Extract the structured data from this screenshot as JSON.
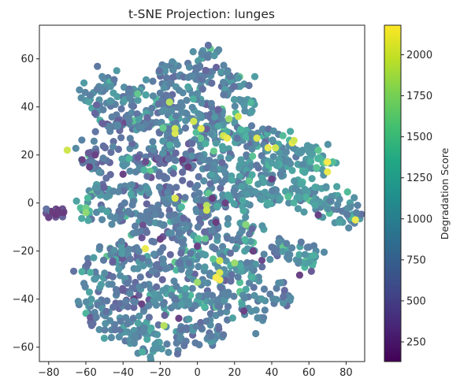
{
  "chart_data": {
    "type": "scatter",
    "title": "t-SNE Projection: lunges",
    "xlabel": "",
    "ylabel": "",
    "xlim": [
      -85,
      90
    ],
    "ylim": [
      -66,
      74
    ],
    "x_ticks": [
      -80,
      -60,
      -40,
      -20,
      0,
      20,
      40,
      60,
      80
    ],
    "y_ticks": [
      -60,
      -40,
      -20,
      0,
      20,
      40,
      60
    ],
    "grid": false,
    "colormap": "viridis",
    "colorbar": {
      "label": "Degradation Score",
      "range": [
        130,
        2180
      ],
      "ticks": [
        250,
        500,
        750,
        1000,
        1250,
        1500,
        1750,
        2000
      ]
    },
    "clusters": [
      {
        "cx": 5,
        "cy": 62,
        "sx": 3,
        "sy": 3,
        "n": 18,
        "c": 820
      },
      {
        "cx": -15,
        "cy": 52,
        "sx": 4,
        "sy": 3,
        "n": 25,
        "c": 780
      },
      {
        "cx": 2,
        "cy": 52,
        "sx": 5,
        "sy": 4,
        "n": 35,
        "c": 800
      },
      {
        "cx": 18,
        "cy": 50,
        "sx": 5,
        "sy": 4,
        "n": 30,
        "c": 850
      },
      {
        "cx": -50,
        "cy": 46,
        "sx": 7,
        "sy": 3,
        "n": 40,
        "c": 900
      },
      {
        "cx": -35,
        "cy": 45,
        "sx": 5,
        "sy": 3,
        "n": 30,
        "c": 850
      },
      {
        "cx": -18,
        "cy": 42,
        "sx": 4,
        "sy": 3,
        "n": 25,
        "c": 750
      },
      {
        "cx": -5,
        "cy": 38,
        "sx": 4,
        "sy": 3,
        "n": 25,
        "c": 850
      },
      {
        "cx": 10,
        "cy": 37,
        "sx": 4,
        "sy": 3,
        "n": 25,
        "c": 700
      },
      {
        "cx": 25,
        "cy": 40,
        "sx": 3,
        "sy": 3,
        "n": 15,
        "c": 1000
      },
      {
        "cx": -45,
        "cy": 33,
        "sx": 5,
        "sy": 3,
        "n": 30,
        "c": 700
      },
      {
        "cx": -30,
        "cy": 33,
        "sx": 5,
        "sy": 3,
        "n": 30,
        "c": 800
      },
      {
        "cx": -15,
        "cy": 30,
        "sx": 4,
        "sy": 4,
        "n": 30,
        "c": 850
      },
      {
        "cx": 5,
        "cy": 28,
        "sx": 5,
        "sy": 4,
        "n": 40,
        "c": 900
      },
      {
        "cx": 20,
        "cy": 28,
        "sx": 5,
        "sy": 4,
        "n": 35,
        "c": 950
      },
      {
        "cx": 35,
        "cy": 27,
        "sx": 4,
        "sy": 3,
        "n": 25,
        "c": 800
      },
      {
        "cx": -55,
        "cy": 20,
        "sx": 4,
        "sy": 4,
        "n": 30,
        "c": 650
      },
      {
        "cx": -35,
        "cy": 18,
        "sx": 5,
        "sy": 4,
        "n": 35,
        "c": 800
      },
      {
        "cx": -20,
        "cy": 18,
        "sx": 5,
        "sy": 4,
        "n": 35,
        "c": 700
      },
      {
        "cx": -5,
        "cy": 18,
        "sx": 4,
        "sy": 4,
        "n": 30,
        "c": 650
      },
      {
        "cx": 10,
        "cy": 15,
        "sx": 5,
        "sy": 4,
        "n": 35,
        "c": 850
      },
      {
        "cx": 28,
        "cy": 14,
        "sx": 5,
        "sy": 4,
        "n": 35,
        "c": 900
      },
      {
        "cx": 45,
        "cy": 18,
        "sx": 5,
        "sy": 4,
        "n": 40,
        "c": 950
      },
      {
        "cx": 58,
        "cy": 20,
        "sx": 4,
        "sy": 4,
        "n": 30,
        "c": 1000
      },
      {
        "cx": 70,
        "cy": 16,
        "sx": 3,
        "sy": 3,
        "n": 12,
        "c": 1300
      },
      {
        "cx": -52,
        "cy": 5,
        "sx": 4,
        "sy": 4,
        "n": 30,
        "c": 800
      },
      {
        "cx": -35,
        "cy": 5,
        "sx": 5,
        "sy": 3,
        "n": 30,
        "c": 850
      },
      {
        "cx": -15,
        "cy": 2,
        "sx": 5,
        "sy": 4,
        "n": 35,
        "c": 700
      },
      {
        "cx": 5,
        "cy": 0,
        "sx": 5,
        "sy": 4,
        "n": 35,
        "c": 750
      },
      {
        "cx": 22,
        "cy": 3,
        "sx": 5,
        "sy": 4,
        "n": 35,
        "c": 900
      },
      {
        "cx": 40,
        "cy": 5,
        "sx": 5,
        "sy": 4,
        "n": 40,
        "c": 950
      },
      {
        "cx": 57,
        "cy": 3,
        "sx": 5,
        "sy": 4,
        "n": 40,
        "c": 1000
      },
      {
        "cx": 72,
        "cy": 0,
        "sx": 5,
        "sy": 4,
        "n": 35,
        "c": 1000
      },
      {
        "cx": 82,
        "cy": -5,
        "sx": 3,
        "sy": 3,
        "n": 20,
        "c": 900
      },
      {
        "cx": -76,
        "cy": -4,
        "sx": 3,
        "sy": 1,
        "n": 25,
        "c": 350
      },
      {
        "cx": -58,
        "cy": -3,
        "sx": 3,
        "sy": 2,
        "n": 15,
        "c": 1050
      },
      {
        "cx": -40,
        "cy": -5,
        "sx": 5,
        "sy": 3,
        "n": 30,
        "c": 800
      },
      {
        "cx": -25,
        "cy": -8,
        "sx": 5,
        "sy": 4,
        "n": 35,
        "c": 700
      },
      {
        "cx": -10,
        "cy": -10,
        "sx": 5,
        "sy": 4,
        "n": 35,
        "c": 750
      },
      {
        "cx": 10,
        "cy": -12,
        "sx": 5,
        "sy": 4,
        "n": 35,
        "c": 800
      },
      {
        "cx": 28,
        "cy": -12,
        "sx": 4,
        "sy": 4,
        "n": 30,
        "c": 900
      },
      {
        "cx": 45,
        "cy": -20,
        "sx": 5,
        "sy": 3,
        "n": 30,
        "c": 850
      },
      {
        "cx": 60,
        "cy": -22,
        "sx": 4,
        "sy": 3,
        "n": 25,
        "c": 900
      },
      {
        "cx": -40,
        "cy": -22,
        "sx": 5,
        "sy": 4,
        "n": 35,
        "c": 800
      },
      {
        "cx": -22,
        "cy": -25,
        "sx": 5,
        "sy": 4,
        "n": 35,
        "c": 750
      },
      {
        "cx": -5,
        "cy": -25,
        "sx": 5,
        "sy": 4,
        "n": 35,
        "c": 850
      },
      {
        "cx": 12,
        "cy": -28,
        "sx": 5,
        "sy": 4,
        "n": 35,
        "c": 900
      },
      {
        "cx": 28,
        "cy": -30,
        "sx": 4,
        "sy": 3,
        "n": 25,
        "c": 850
      },
      {
        "cx": -55,
        "cy": -30,
        "sx": 4,
        "sy": 4,
        "n": 25,
        "c": 800
      },
      {
        "cx": -38,
        "cy": -38,
        "sx": 5,
        "sy": 4,
        "n": 35,
        "c": 750
      },
      {
        "cx": -22,
        "cy": -40,
        "sx": 5,
        "sy": 4,
        "n": 35,
        "c": 850
      },
      {
        "cx": -5,
        "cy": -40,
        "sx": 5,
        "sy": 4,
        "n": 35,
        "c": 900
      },
      {
        "cx": 12,
        "cy": -40,
        "sx": 5,
        "sy": 4,
        "n": 35,
        "c": 800
      },
      {
        "cx": 30,
        "cy": -42,
        "sx": 5,
        "sy": 4,
        "n": 30,
        "c": 850
      },
      {
        "cx": 45,
        "cy": -38,
        "sx": 3,
        "sy": 3,
        "n": 15,
        "c": 800
      },
      {
        "cx": -55,
        "cy": -45,
        "sx": 4,
        "sy": 4,
        "n": 30,
        "c": 800
      },
      {
        "cx": -40,
        "cy": -52,
        "sx": 5,
        "sy": 4,
        "n": 30,
        "c": 850
      },
      {
        "cx": -25,
        "cy": -55,
        "sx": 5,
        "sy": 4,
        "n": 35,
        "c": 900
      },
      {
        "cx": -8,
        "cy": -55,
        "sx": 5,
        "sy": 4,
        "n": 30,
        "c": 800
      },
      {
        "cx": 10,
        "cy": -52,
        "sx": 4,
        "sy": 3,
        "n": 20,
        "c": 750
      }
    ],
    "highlights": [
      [
        -70,
        22,
        2000
      ],
      [
        -15,
        42,
        1900
      ],
      [
        -12,
        29,
        2050
      ],
      [
        -12,
        31,
        2000
      ],
      [
        -2,
        34,
        2000
      ],
      [
        2,
        31,
        2050
      ],
      [
        14,
        28,
        2000
      ],
      [
        16,
        27,
        2100
      ],
      [
        17,
        35,
        1800
      ],
      [
        22,
        36,
        2000
      ],
      [
        32,
        27,
        2050
      ],
      [
        38,
        23,
        2100
      ],
      [
        42,
        23,
        2000
      ],
      [
        51,
        25,
        2100
      ],
      [
        52,
        26,
        2000
      ],
      [
        70,
        17,
        2150
      ],
      [
        70,
        13,
        2100
      ],
      [
        -12,
        2,
        2050
      ],
      [
        -60,
        -2,
        1600
      ],
      [
        5,
        -1,
        1900
      ],
      [
        5,
        -3,
        2000
      ],
      [
        26,
        -9,
        1700
      ],
      [
        -28,
        -19,
        2100
      ],
      [
        12,
        -24,
        2000
      ],
      [
        20,
        -25,
        1800
      ],
      [
        12,
        -29,
        2050
      ],
      [
        10,
        -31,
        2150
      ],
      [
        12,
        -32,
        2150
      ],
      [
        0,
        -33,
        1800
      ],
      [
        -18,
        -51,
        1900
      ],
      [
        85,
        -7,
        2100
      ],
      [
        -60,
        -4,
        1750
      ],
      [
        46,
        28,
        1400
      ],
      [
        65,
        22,
        1500
      ]
    ],
    "darks": [
      [
        -78,
        -4,
        200
      ],
      [
        -76,
        -5,
        180
      ],
      [
        -74,
        -4,
        220
      ],
      [
        -72,
        -4,
        200
      ],
      [
        -80,
        -6,
        250
      ],
      [
        -75,
        -3,
        200
      ],
      [
        -62,
        18,
        250
      ],
      [
        -58,
        15,
        220
      ],
      [
        -55,
        20,
        250
      ],
      [
        -8,
        18,
        200
      ],
      [
        -5,
        15,
        200
      ],
      [
        10,
        -8,
        200
      ],
      [
        8,
        2,
        200
      ],
      [
        15,
        0,
        250
      ],
      [
        -40,
        12,
        250
      ],
      [
        -20,
        -15,
        250
      ],
      [
        0,
        -18,
        250
      ],
      [
        30,
        -20,
        250
      ],
      [
        55,
        -30,
        250
      ],
      [
        -30,
        -42,
        250
      ],
      [
        -10,
        -48,
        250
      ],
      [
        25,
        -45,
        250
      ],
      [
        40,
        10,
        250
      ],
      [
        65,
        -5,
        250
      ]
    ]
  }
}
